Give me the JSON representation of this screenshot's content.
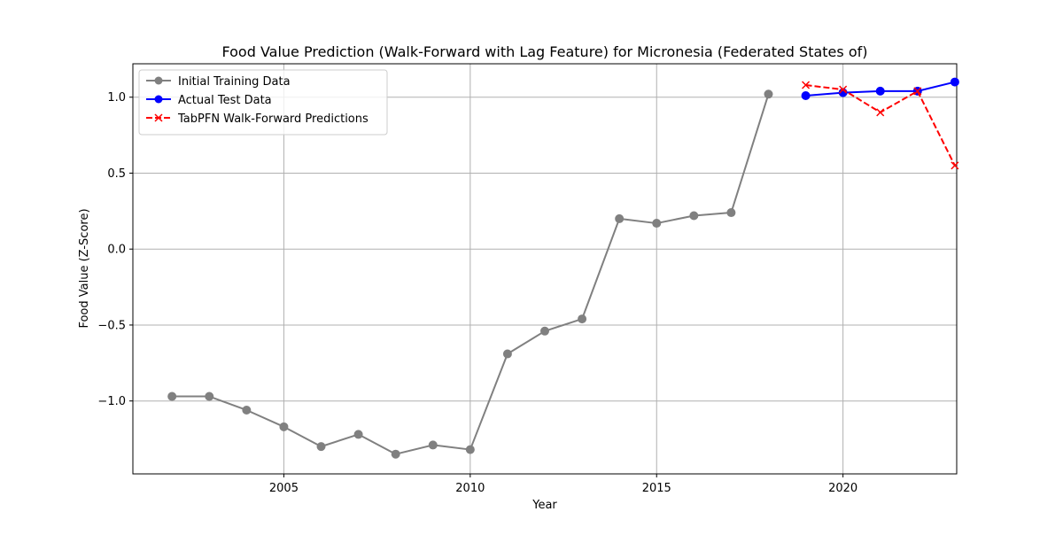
{
  "chart_data": {
    "type": "line",
    "title": "Food Value Prediction (Walk-Forward with Lag Feature) for Micronesia (Federated States of)",
    "xlabel": "Year",
    "ylabel": "Food Value (Z-Score)",
    "xlim": [
      2000.95,
      2023.05
    ],
    "ylim": [
      -1.48,
      1.22
    ],
    "xticks": [
      2005,
      2010,
      2015,
      2020
    ],
    "xtick_labels": [
      "2005",
      "2010",
      "2015",
      "2020"
    ],
    "yticks": [
      -1.0,
      -0.5,
      0.0,
      0.5,
      1.0
    ],
    "ytick_labels": [
      "−1.0",
      "−0.5",
      "0.0",
      "0.5",
      "1.0"
    ],
    "grid": true,
    "legend_position": "top-left",
    "series": [
      {
        "name": "Initial Training Data",
        "color": "#808080",
        "marker": "circle",
        "linestyle": "solid",
        "x": [
          2002,
          2003,
          2004,
          2005,
          2006,
          2007,
          2008,
          2009,
          2010,
          2011,
          2012,
          2013,
          2014,
          2015,
          2016,
          2017,
          2018
        ],
        "y": [
          -0.97,
          -0.97,
          -1.06,
          -1.17,
          -1.3,
          -1.22,
          -1.35,
          -1.29,
          -1.32,
          -0.69,
          -0.54,
          -0.46,
          0.2,
          0.17,
          0.22,
          0.24,
          1.02
        ]
      },
      {
        "name": "Actual Test Data",
        "color": "#0000ff",
        "marker": "circle",
        "linestyle": "solid",
        "x": [
          2019,
          2020,
          2021,
          2022,
          2023
        ],
        "y": [
          1.01,
          1.03,
          1.04,
          1.04,
          1.1
        ]
      },
      {
        "name": "TabPFN Walk-Forward Predictions",
        "color": "#ff0000",
        "marker": "x",
        "linestyle": "dashed",
        "x": [
          2019,
          2020,
          2021,
          2022,
          2023
        ],
        "y": [
          1.08,
          1.05,
          0.9,
          1.04,
          0.55
        ]
      }
    ]
  }
}
